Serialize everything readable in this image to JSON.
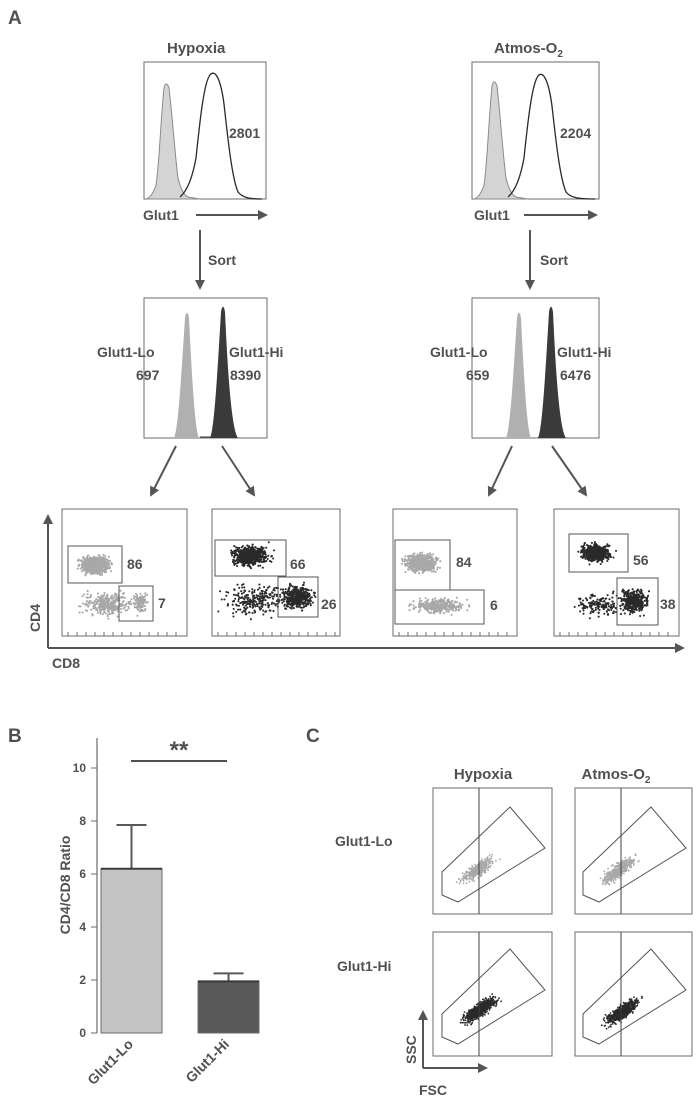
{
  "panels": {
    "A": "A",
    "B": "B",
    "C": "C"
  },
  "panel_a": {
    "conditions": [
      "Hypoxia",
      "Atmos-O",
      "2"
    ],
    "histogram_axis": "Glut1",
    "sort_label": "Sort",
    "top_histograms": [
      {
        "condition": "Hypoxia",
        "mfi": "2801"
      },
      {
        "condition": "Atmos-O2",
        "mfi": "2204"
      }
    ],
    "sorted_histograms": [
      {
        "condition": "Hypoxia",
        "lo_label": "Glut1-Lo",
        "lo_mfi": "697",
        "hi_label": "Glut1-Hi",
        "hi_mfi": "8390"
      },
      {
        "condition": "Atmos-O2",
        "lo_label": "Glut1-Lo",
        "lo_mfi": "659",
        "hi_label": "Glut1-Hi",
        "hi_mfi": "6476"
      }
    ],
    "dot_plot_y_label": "CD4",
    "dot_plot_x_label": "CD8",
    "dot_plots": [
      {
        "population": "Glut1-Lo",
        "condition": "Hypoxia",
        "cd4_percent": "86",
        "cd8_percent": "7",
        "color": "#a8a8a8"
      },
      {
        "population": "Glut1-Hi",
        "condition": "Hypoxia",
        "cd4_percent": "66",
        "cd8_percent": "26",
        "color": "#2a2a2a"
      },
      {
        "population": "Glut1-Lo",
        "condition": "Atmos-O2",
        "cd4_percent": "84",
        "cd8_percent": "6",
        "color": "#a8a8a8"
      },
      {
        "population": "Glut1-Hi",
        "condition": "Atmos-O2",
        "cd4_percent": "56",
        "cd8_percent": "38",
        "color": "#2a2a2a"
      }
    ]
  },
  "chart_data": {
    "type": "bar",
    "categories": [
      "Glut1-Lo",
      "Glut1-Hi"
    ],
    "values": [
      6.2,
      1.95
    ],
    "errors": [
      1.65,
      0.3
    ],
    "colors": [
      "#c4c4c4",
      "#595959"
    ],
    "title": "",
    "xlabel": "",
    "ylabel": "CD4/CD8 Ratio",
    "ylim": [
      0,
      10
    ],
    "yticks": [
      "0",
      "2",
      "4",
      "6",
      "8",
      "10"
    ],
    "significance": "**",
    "grid": false
  },
  "panel_c": {
    "column_headers": [
      "Hypoxia",
      "Atmos-O",
      "2"
    ],
    "row_labels": [
      "Glut1-Lo",
      "Glut1-Hi"
    ],
    "y_label": "SSC",
    "x_label": "FSC",
    "cells": [
      {
        "row": "Glut1-Lo",
        "column": "Hypoxia",
        "color": "#a8a8a8"
      },
      {
        "row": "Glut1-Lo",
        "column": "Atmos-O2",
        "color": "#a8a8a8"
      },
      {
        "row": "Glut1-Hi",
        "column": "Hypoxia",
        "color": "#2a2a2a"
      },
      {
        "row": "Glut1-Hi",
        "column": "Atmos-O2",
        "color": "#2a2a2a"
      }
    ]
  }
}
